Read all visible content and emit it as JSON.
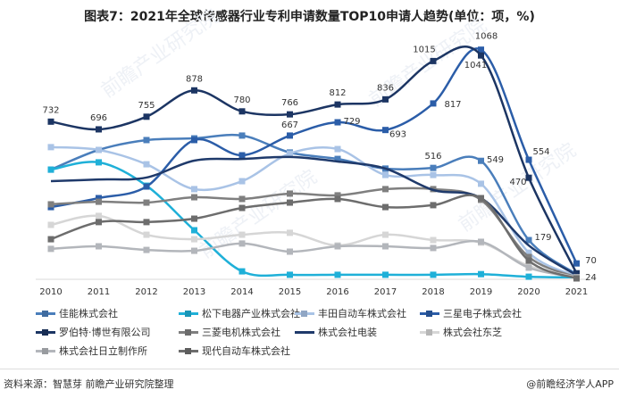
{
  "title": "图表7：2021年全球传感器行业专利申请数量TOP10申请人趋势(单位：项，%)",
  "source": "资料来源：智慧芽 前瞻产业研究院整理",
  "brand": "@前瞻经济学人APP",
  "watermark": "前瞻产业研究院",
  "chart_data": {
    "type": "line",
    "title": "图表7：2021年全球传感器行业专利申请数量TOP10申请人趋势(单位：项，%)",
    "xlabel": "",
    "ylabel": "",
    "ylim": [
      0,
      1100
    ],
    "grid": false,
    "legend": "bottom",
    "categories": [
      "2010",
      "2011",
      "2012",
      "2013",
      "2014",
      "2015",
      "2016",
      "2017",
      "2018",
      "2019",
      "2020",
      "2021"
    ],
    "series": [
      {
        "name": "佳能株式会社",
        "color": "#4a7ebb",
        "marker": true,
        "values": [
          508,
          600,
          646,
          654,
          667,
          588,
          558,
          513,
          516,
          549,
          179,
          20
        ],
        "labels": [
          null,
          null,
          null,
          null,
          null,
          null,
          null,
          null,
          "516",
          "549",
          "179",
          null
        ]
      },
      {
        "name": "松下电器产业株式会社",
        "color": "#1fb0d8",
        "marker": true,
        "values": [
          508,
          542,
          433,
          225,
          33,
          17,
          17,
          17,
          17,
          20,
          8,
          5
        ],
        "labels": []
      },
      {
        "name": "丰田自动车株式会社",
        "color": "#a9c3e6",
        "marker": true,
        "values": [
          613,
          600,
          533,
          417,
          454,
          583,
          604,
          483,
          483,
          442,
          120,
          10
        ],
        "labels": []
      },
      {
        "name": "三星电子株式会社",
        "color": "#2b5da8",
        "marker": true,
        "values": [
          333,
          375,
          429,
          646,
          575,
          667,
          729,
          693,
          817,
          1068,
          554,
          70
        ],
        "labels": [
          null,
          null,
          null,
          null,
          null,
          "667",
          "729",
          "693",
          "817",
          "1068",
          "554",
          "70"
        ]
      },
      {
        "name": "罗伯特·博世有限公司",
        "color": "#1c3563",
        "marker": true,
        "values": [
          732,
          696,
          755,
          878,
          780,
          766,
          812,
          836,
          1015,
          1041,
          470,
          24
        ],
        "labels": [
          "732",
          "696",
          "755",
          "878",
          "780",
          "766",
          "812",
          "836",
          "1015",
          "1041",
          "470",
          "24"
        ]
      },
      {
        "name": "三菱电机株式会社",
        "color": "#7f7f7f",
        "marker": true,
        "values": [
          346,
          358,
          354,
          379,
          371,
          396,
          388,
          417,
          417,
          367,
          100,
          5
        ],
        "labels": []
      },
      {
        "name": "株式会社电装",
        "color": "#1f3a6b",
        "marker": false,
        "values": [
          454,
          462,
          471,
          550,
          558,
          567,
          546,
          513,
          413,
          375,
          154,
          15
        ],
        "labels": []
      },
      {
        "name": "株式会社东芝",
        "color": "#d6d6d6",
        "marker": true,
        "values": [
          250,
          292,
          204,
          183,
          204,
          213,
          154,
          204,
          179,
          167,
          58,
          5
        ],
        "labels": []
      },
      {
        "name": "株式会社日立制作所",
        "color": "#b3b6bb",
        "marker": true,
        "values": [
          138,
          150,
          133,
          129,
          163,
          125,
          150,
          150,
          142,
          171,
          50,
          5
        ],
        "labels": []
      },
      {
        "name": "现代自动车株式会社",
        "color": "#6d6d6d",
        "marker": true,
        "values": [
          183,
          263,
          263,
          279,
          329,
          354,
          371,
          333,
          342,
          375,
          83,
          0
        ],
        "labels": []
      }
    ]
  }
}
